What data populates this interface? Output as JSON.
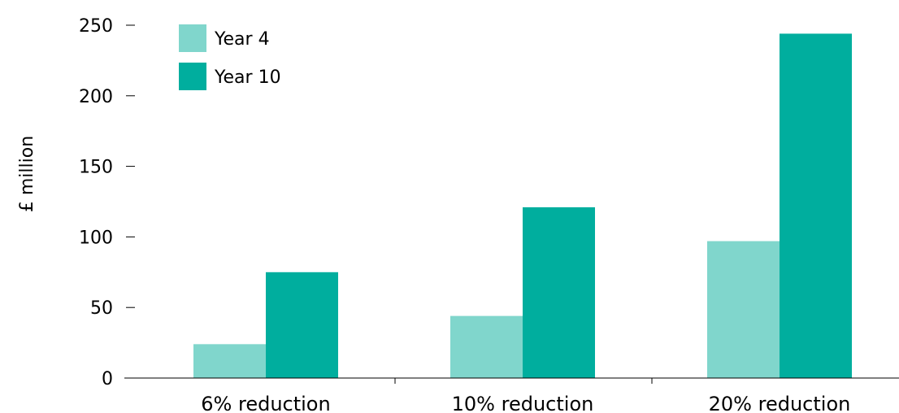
{
  "chart_data": {
    "type": "bar",
    "title": "",
    "xlabel": "",
    "ylabel": "£ million",
    "ylim": [
      0,
      250
    ],
    "yticks": [
      0,
      50,
      100,
      150,
      200,
      250
    ],
    "categories": [
      "6% reduction",
      "10% reduction",
      "20% reduction"
    ],
    "series": [
      {
        "name": "Year 4",
        "color": "#80d6cc",
        "values": [
          24,
          44,
          97
        ]
      },
      {
        "name": "Year 10",
        "color": "#00ae9e",
        "values": [
          75,
          121,
          244
        ]
      }
    ],
    "grid": false,
    "legend": "top-left"
  }
}
